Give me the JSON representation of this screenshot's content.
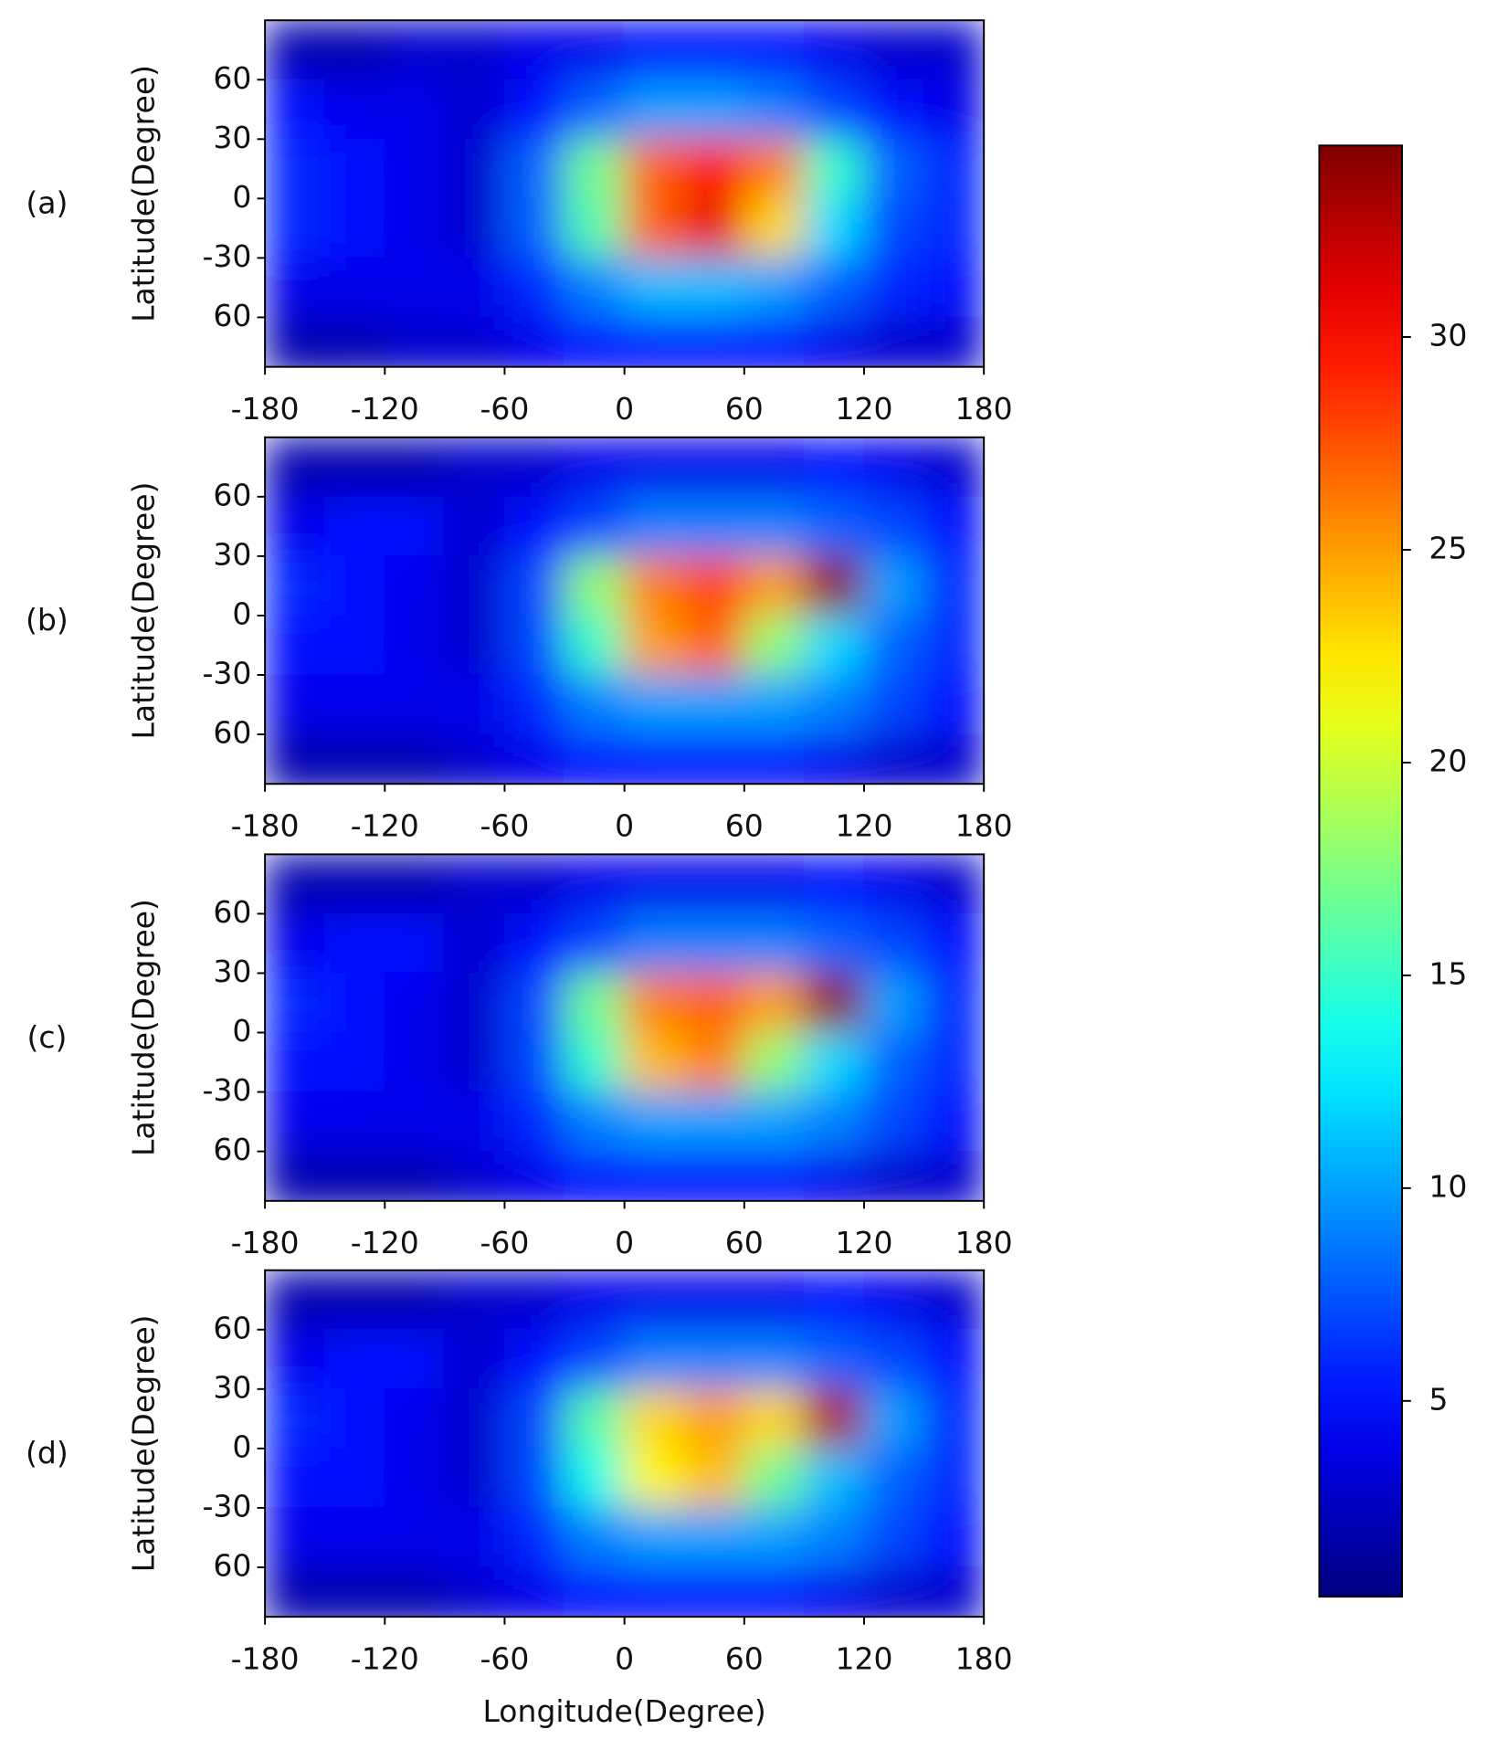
{
  "chart_data": [
    {
      "type": "heatmap",
      "panel_label": "(a)",
      "ylabel": "Latitude(Degree)",
      "x": [
        -165,
        -135,
        -105,
        -75,
        -45,
        -15,
        15,
        45,
        75,
        105,
        135,
        165
      ],
      "y": [
        75,
        45,
        15,
        -15,
        -45,
        -75
      ],
      "z": [
        [
          2,
          2,
          3,
          3,
          4,
          4,
          5,
          5,
          5,
          4,
          3,
          3
        ],
        [
          5,
          4,
          4,
          3,
          5,
          8,
          10,
          10,
          9,
          7,
          5,
          4
        ],
        [
          6,
          5,
          4,
          3,
          8,
          17,
          27,
          30,
          26,
          15,
          8,
          6
        ],
        [
          6,
          5,
          4,
          3,
          8,
          16,
          27,
          31,
          23,
          12,
          7,
          6
        ],
        [
          4,
          4,
          4,
          4,
          6,
          9,
          11,
          11,
          10,
          8,
          6,
          5
        ],
        [
          2,
          2,
          3,
          3,
          4,
          5,
          5,
          5,
          5,
          4,
          3,
          3
        ]
      ],
      "xlim": [
        -180,
        180
      ],
      "ylim": [
        -85,
        90
      ],
      "xticks": [
        -180,
        -120,
        -60,
        0,
        60,
        120,
        180
      ],
      "yticks": [
        {
          "value": -60,
          "label": "60"
        },
        -30,
        0,
        30,
        60
      ]
    },
    {
      "type": "heatmap",
      "panel_label": "(b)",
      "ylabel": "Latitude(Degree)",
      "x": [
        -165,
        -135,
        -105,
        -75,
        -45,
        -15,
        15,
        45,
        75,
        105,
        135,
        165
      ],
      "y": [
        75,
        45,
        15,
        -15,
        -45,
        -75
      ],
      "z": [
        [
          2,
          2,
          2,
          3,
          3,
          4,
          4,
          4,
          4,
          5,
          4,
          3
        ],
        [
          4,
          5,
          5,
          3,
          5,
          7,
          9,
          9,
          9,
          8,
          7,
          5
        ],
        [
          6,
          5,
          4,
          3,
          7,
          18,
          26,
          28,
          25,
          34,
          10,
          6
        ],
        [
          5,
          5,
          4,
          3,
          7,
          15,
          25,
          27,
          18,
          12,
          8,
          6
        ],
        [
          4,
          4,
          4,
          4,
          6,
          9,
          10,
          10,
          10,
          9,
          7,
          5
        ],
        [
          2,
          2,
          2,
          3,
          4,
          5,
          5,
          5,
          5,
          4,
          3,
          3
        ]
      ],
      "xlim": [
        -180,
        180
      ],
      "ylim": [
        -85,
        90
      ],
      "xticks": [
        -180,
        -120,
        -60,
        0,
        60,
        120,
        180
      ],
      "yticks": [
        {
          "value": -60,
          "label": "60"
        },
        -30,
        0,
        30,
        60
      ]
    },
    {
      "type": "heatmap",
      "panel_label": "(c)",
      "ylabel": "Latitude(Degree)",
      "x": [
        -165,
        -135,
        -105,
        -75,
        -45,
        -15,
        15,
        45,
        75,
        105,
        135,
        165
      ],
      "y": [
        75,
        45,
        15,
        -15,
        -45,
        -75
      ],
      "z": [
        [
          2,
          2,
          2,
          3,
          3,
          4,
          4,
          4,
          4,
          5,
          4,
          3
        ],
        [
          4,
          5,
          5,
          3,
          5,
          7,
          9,
          9,
          9,
          8,
          7,
          5
        ],
        [
          6,
          5,
          4,
          3,
          7,
          17,
          26,
          27,
          25,
          34,
          10,
          6
        ],
        [
          5,
          5,
          4,
          3,
          7,
          15,
          24,
          26,
          18,
          12,
          8,
          6
        ],
        [
          4,
          4,
          4,
          4,
          6,
          9,
          10,
          10,
          10,
          9,
          7,
          5
        ],
        [
          2,
          2,
          2,
          3,
          4,
          5,
          5,
          5,
          5,
          4,
          3,
          3
        ]
      ],
      "xlim": [
        -180,
        180
      ],
      "ylim": [
        -85,
        90
      ],
      "xticks": [
        -180,
        -120,
        -60,
        0,
        60,
        120,
        180
      ],
      "yticks": [
        {
          "value": -60,
          "label": "60"
        },
        -30,
        0,
        30,
        60
      ]
    },
    {
      "type": "heatmap",
      "panel_label": "(d)",
      "ylabel": "Latitude(Degree)",
      "xlabel": "Longitude(Degree)",
      "x": [
        -165,
        -135,
        -105,
        -75,
        -45,
        -15,
        15,
        45,
        75,
        105,
        135,
        165
      ],
      "y": [
        75,
        45,
        15,
        -15,
        -45,
        -75
      ],
      "z": [
        [
          2,
          2,
          2,
          3,
          3,
          4,
          4,
          4,
          4,
          5,
          4,
          3
        ],
        [
          4,
          5,
          5,
          3,
          5,
          7,
          9,
          9,
          9,
          8,
          7,
          5
        ],
        [
          6,
          5,
          4,
          3,
          7,
          16,
          23,
          25,
          23,
          33,
          10,
          6
        ],
        [
          5,
          5,
          4,
          3,
          7,
          14,
          22,
          24,
          17,
          11,
          8,
          6
        ],
        [
          4,
          4,
          4,
          4,
          6,
          9,
          10,
          10,
          10,
          9,
          7,
          5
        ],
        [
          2,
          2,
          2,
          3,
          4,
          5,
          5,
          5,
          5,
          4,
          3,
          3
        ]
      ],
      "xlim": [
        -180,
        180
      ],
      "ylim": [
        -85,
        90
      ],
      "xticks": [
        -180,
        -120,
        -60,
        0,
        60,
        120,
        180
      ],
      "yticks": [
        {
          "value": -60,
          "label": "60"
        },
        -30,
        0,
        30,
        60
      ]
    }
  ],
  "colorbar": {
    "colormap": "jet",
    "lim": [
      0.4,
      34.5
    ],
    "ticks": [
      5,
      10,
      15,
      20,
      25,
      30
    ]
  }
}
